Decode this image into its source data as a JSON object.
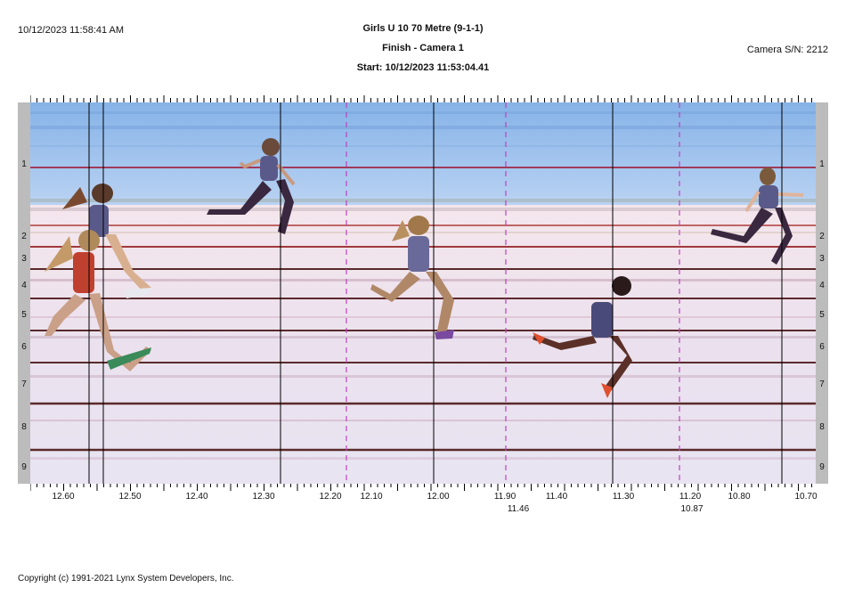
{
  "header": {
    "timestamp": "10/12/2023 11:58:41 AM",
    "event_title": "Girls U 10 70 Metre (9-1-1)",
    "subtitle": "Finish - Camera 1",
    "start_line": "Start: 10/12/2023 11:53:04.41",
    "camera_sn": "Camera S/N: 2212"
  },
  "lanes": [
    "1",
    "2",
    "3",
    "4",
    "5",
    "6",
    "7",
    "8",
    "9"
  ],
  "time_axis": {
    "ticks": [
      "12.60",
      "12.50",
      "12.40",
      "12.30",
      "12.20",
      "12.10",
      "12.00",
      "11.90",
      "11.40",
      "11.30",
      "11.20",
      "10.80",
      "10.70"
    ],
    "sub_labels": [
      "11.46",
      "10.87"
    ]
  },
  "colors": {
    "sky": "#9fc3f0",
    "guide_line": "#000000",
    "dashed_guide": "#c040c0",
    "lane_line": "#3a2a2a"
  },
  "footer": {
    "copyright": "Copyright (c) 1991-2021 Lynx System Developers, Inc."
  }
}
